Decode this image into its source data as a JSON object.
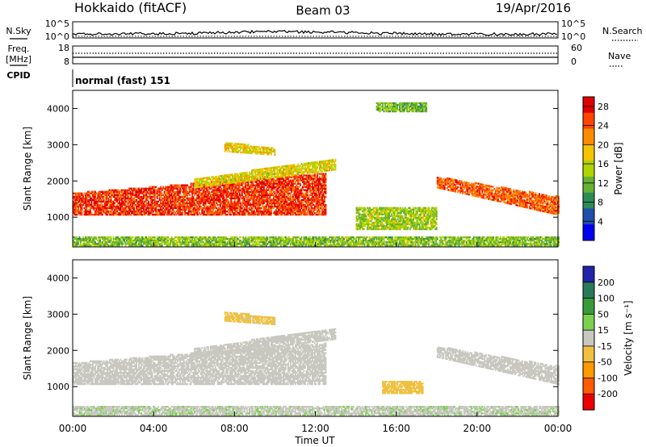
{
  "header": {
    "station": "Hokkaido (fitACF)",
    "beam": "Beam 03",
    "date": "19/Apr/2016"
  },
  "left_labels": {
    "nsky": "N.Sky",
    "freq": "Freq.",
    "mhz": "[MHz]",
    "cpid": "CPID"
  },
  "right_labels": {
    "nsearch": "N.Search",
    "nave": "Nave"
  },
  "strip_ticks": {
    "noise_top": "10^5",
    "noise_bot": "10^0",
    "freq_top": "18",
    "freq_bot": "8",
    "nave_top": "60",
    "nave_bot": "0"
  },
  "cpid_text": "normal (fast) 151",
  "colors": {
    "power": [
      "#0000ee",
      "#1f4faa",
      "#2e8b57",
      "#66b233",
      "#b0d400",
      "#f5c400",
      "#ff8c00",
      "#ff4500",
      "#e00000"
    ],
    "velocity": [
      "#ee0000",
      "#ff5a00",
      "#ff9900",
      "#f0c040",
      "#c8c8c0",
      "#7cd050",
      "#3a9a3a",
      "#2a7a5a",
      "#2222aa"
    ],
    "ground_scatter": "#c8c8c0"
  },
  "chart_data": [
    {
      "type": "heatmap",
      "panel": "power",
      "ylabel": "Slant Range [km]",
      "xlim": [
        "00:00",
        "24:00"
      ],
      "ylim": [
        180,
        4500
      ],
      "yticks": [
        "1000",
        "2000",
        "3000",
        "4000"
      ],
      "colorbar": {
        "label": "Power [dB]",
        "ticks": [
          "4",
          "8",
          "12",
          "16",
          "20",
          "24",
          "28"
        ],
        "range": [
          0,
          30
        ]
      },
      "regions": [
        {
          "t0": 0.0,
          "t1": 12.5,
          "r_start": [
            1050,
            1050
          ],
          "r_end": [
            1650,
            2200
          ],
          "level": 26
        },
        {
          "t0": 18.0,
          "t1": 24.0,
          "r_start": [
            1800,
            1050
          ],
          "r_end": [
            2100,
            1550
          ],
          "level": 24
        },
        {
          "t0": 6.0,
          "t1": 13.0,
          "r_start": [
            1800,
            2300
          ],
          "r_end": [
            2050,
            2600
          ],
          "level": 17
        },
        {
          "t0": 7.5,
          "t1": 10.0,
          "r_start": [
            2800,
            2700
          ],
          "r_end": [
            3050,
            2900
          ],
          "level": 18
        },
        {
          "t0": 14.0,
          "t1": 18.0,
          "r_start": [
            650,
            650
          ],
          "r_end": [
            1250,
            1250
          ],
          "level": 14
        },
        {
          "t0": 15.0,
          "t1": 17.5,
          "r_start": [
            3900,
            3900
          ],
          "r_end": [
            4150,
            4150
          ],
          "level": 12
        },
        {
          "t0": 0.0,
          "t1": 24.0,
          "r_start": [
            200,
            200
          ],
          "r_end": [
            450,
            450
          ],
          "level": 13
        }
      ]
    },
    {
      "type": "heatmap",
      "panel": "velocity",
      "ylabel": "Slant Range [km]",
      "xlabel": "Time UT",
      "xlim": [
        "00:00",
        "24:00"
      ],
      "ylim": [
        180,
        4500
      ],
      "yticks": [
        "1000",
        "2000",
        "3000",
        "4000"
      ],
      "xticks": [
        "00:00",
        "04:00",
        "08:00",
        "12:00",
        "16:00",
        "20:00",
        "00:00"
      ],
      "colorbar": {
        "label": "Velocity [m s⁻¹]",
        "ticks": [
          "200",
          "100",
          "50",
          "15",
          "-15",
          "-50",
          "-100",
          "-200"
        ],
        "range": [
          -250,
          250
        ]
      },
      "regions": [
        {
          "t0": 0.0,
          "t1": 12.5,
          "r_start": [
            1050,
            1050
          ],
          "r_end": [
            1650,
            2200
          ],
          "level": 0
        },
        {
          "t0": 18.0,
          "t1": 24.0,
          "r_start": [
            1800,
            1050
          ],
          "r_end": [
            2100,
            1550
          ],
          "level": 0
        },
        {
          "t0": 15.3,
          "t1": 17.3,
          "r_start": [
            800,
            800
          ],
          "r_end": [
            1150,
            1150
          ],
          "level": -60
        },
        {
          "t0": 7.5,
          "t1": 10.0,
          "r_start": [
            2800,
            2700
          ],
          "r_end": [
            3050,
            2900
          ],
          "level": -40
        },
        {
          "t0": 6.0,
          "t1": 13.0,
          "r_start": [
            1800,
            2300
          ],
          "r_end": [
            2050,
            2600
          ],
          "level": 10
        },
        {
          "t0": 0.0,
          "t1": 24.0,
          "r_start": [
            200,
            200
          ],
          "r_end": [
            450,
            450
          ],
          "level": 20
        }
      ]
    }
  ]
}
